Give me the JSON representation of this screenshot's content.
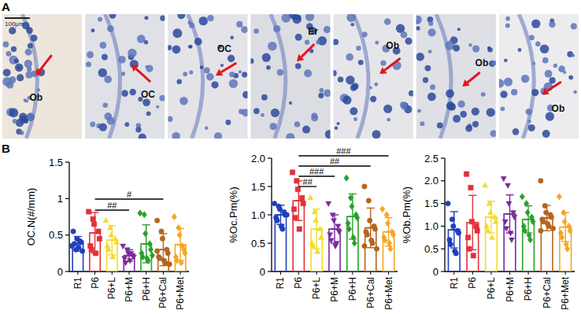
{
  "panel_a": {
    "label": "A",
    "scale_bar": "100μm",
    "arrow_labels": [
      "Ob",
      "OC",
      "OC",
      "Er",
      "Ob",
      "Ob",
      "Ob"
    ]
  },
  "panel_b_label": "B",
  "chart_data": [
    {
      "type": "bar",
      "y_label": "OC.N(#/mm)",
      "categories": [
        "R1",
        "P6",
        "P6+L",
        "P6+M",
        "P6+H",
        "P6+Cal",
        "P6+Met"
      ],
      "colors": [
        "#1f3fbf",
        "#e0323a",
        "#f2dc2a",
        "#7a2a9a",
        "#2aa02a",
        "#b5651d",
        "#f5a623"
      ],
      "values": [
        0.38,
        0.53,
        0.43,
        0.22,
        0.38,
        0.3,
        0.37
      ],
      "errors": [
        0.1,
        0.28,
        0.2,
        0.08,
        0.26,
        0.22,
        0.22
      ],
      "points": [
        [
          0.35,
          0.3,
          0.45,
          0.4,
          0.28,
          0.55,
          0.38,
          0.33,
          0.42
        ],
        [
          0.82,
          0.72,
          0.65,
          0.55,
          0.45,
          0.35,
          0.3,
          0.25
        ],
        [
          0.7,
          0.6,
          0.5,
          0.45,
          0.4,
          0.35,
          0.3,
          0.2
        ],
        [
          0.35,
          0.3,
          0.25,
          0.22,
          0.2,
          0.18,
          0.12,
          0.15,
          0.25
        ],
        [
          0.8,
          0.78,
          0.52,
          0.38,
          0.3,
          0.25,
          0.2,
          0.18,
          0.15,
          0.22
        ],
        [
          0.7,
          0.55,
          0.45,
          0.3,
          0.25,
          0.2,
          0.18,
          0.15,
          0.12,
          0.1,
          0.28
        ],
        [
          0.75,
          0.6,
          0.5,
          0.3,
          0.25,
          0.2,
          0.15,
          0.12,
          0.35
        ]
      ],
      "ylim": [
        0,
        1.5
      ],
      "yticks": [
        0,
        0.5,
        1,
        1.5
      ],
      "annotations": [
        {
          "from": "P6",
          "to": "P6+Cal",
          "label": "#"
        },
        {
          "from": "P6",
          "to": "P6+M",
          "label": "##"
        }
      ]
    },
    {
      "type": "bar",
      "y_label": "%Oc.Pm(%)",
      "categories": [
        "R1",
        "P6",
        "P6+L",
        "P6+M",
        "P6+H",
        "P6+Cal",
        "P6+Met"
      ],
      "colors": [
        "#1f3fbf",
        "#e0323a",
        "#f2dc2a",
        "#7a2a9a",
        "#2aa02a",
        "#b5651d",
        "#f5a623"
      ],
      "values": [
        1.0,
        1.25,
        0.75,
        0.75,
        0.97,
        0.77,
        0.7
      ],
      "errors": [
        0.17,
        0.35,
        0.35,
        0.25,
        0.4,
        0.35,
        0.25
      ],
      "points": [
        [
          1.2,
          1.15,
          1.1,
          1.05,
          1.0,
          0.95,
          0.9,
          0.8,
          0.75,
          1.0
        ],
        [
          1.75,
          1.6,
          1.45,
          1.3,
          1.2,
          1.1,
          0.95,
          0.75
        ],
        [
          1.3,
          1.05,
          0.9,
          0.75,
          0.6,
          0.5,
          0.45,
          0.35
        ],
        [
          1.2,
          1.0,
          0.9,
          0.8,
          0.7,
          0.65,
          0.55,
          0.45,
          0.5
        ],
        [
          1.65,
          1.3,
          1.15,
          1.0,
          0.95,
          0.85,
          0.75,
          0.6,
          0.5
        ],
        [
          1.5,
          1.25,
          0.9,
          0.8,
          0.75,
          0.7,
          0.65,
          0.55,
          0.5,
          0.4,
          0.45
        ],
        [
          1.1,
          1.0,
          0.85,
          0.7,
          0.65,
          0.6,
          0.55,
          0.5,
          0.4
        ]
      ],
      "ylim": [
        0,
        2
      ],
      "yticks": [
        0,
        0.5,
        {
          "value": 1,
          "label": "1.0"
        },
        1.5,
        {
          "value": 2,
          "label": "2.0"
        }
      ],
      "annotations": [
        {
          "from": "P6",
          "to": "P6+Met",
          "label": "###"
        },
        {
          "from": "P6",
          "to": "P6+Cal",
          "label": "##"
        },
        {
          "from": "P6",
          "to": "P6+M",
          "label": "###"
        },
        {
          "from": "P6",
          "to": "P6+L",
          "label": "##"
        }
      ]
    },
    {
      "type": "bar",
      "y_label": "%Ob.Pm(%)",
      "categories": [
        "R1",
        "P6",
        "P6+L",
        "P6+M",
        "P6+H",
        "P6+Cal",
        "P6+Met"
      ],
      "colors": [
        "#1f3fbf",
        "#e0323a",
        "#f2dc2a",
        "#7a2a9a",
        "#2aa02a",
        "#b5651d",
        "#f5a623"
      ],
      "values": [
        0.92,
        1.08,
        1.2,
        1.27,
        1.15,
        1.18,
        0.98
      ],
      "errors": [
        0.4,
        0.6,
        0.35,
        0.42,
        0.3,
        0.28,
        0.32
      ],
      "points": [
        [
          1.5,
          1.15,
          1.0,
          0.9,
          0.85,
          0.7,
          0.6,
          0.45,
          0.4
        ],
        [
          2.15,
          1.85,
          1.1,
          1.0,
          0.9,
          0.75,
          0.5,
          0.35
        ],
        [
          1.9,
          1.5,
          1.3,
          1.2,
          1.1,
          1.0,
          0.9,
          0.75
        ],
        [
          2.05,
          1.9,
          1.5,
          1.3,
          1.2,
          1.1,
          0.95,
          0.85,
          0.7
        ],
        [
          1.65,
          1.5,
          1.3,
          1.2,
          1.1,
          1.0,
          0.9,
          0.8,
          0.7
        ],
        [
          2.0,
          1.45,
          1.3,
          1.25,
          1.2,
          1.15,
          1.1,
          1.05,
          1.0,
          0.95,
          0.9
        ],
        [
          1.65,
          1.3,
          1.1,
          1.0,
          0.9,
          0.85,
          0.75,
          0.6,
          0.5
        ]
      ],
      "ylim": [
        0,
        2.5
      ],
      "yticks": [
        0,
        0.5,
        {
          "value": 1,
          "label": "1.0"
        },
        1.5,
        {
          "value": 2,
          "label": "2.0"
        },
        2.5
      ],
      "annotations": []
    }
  ]
}
